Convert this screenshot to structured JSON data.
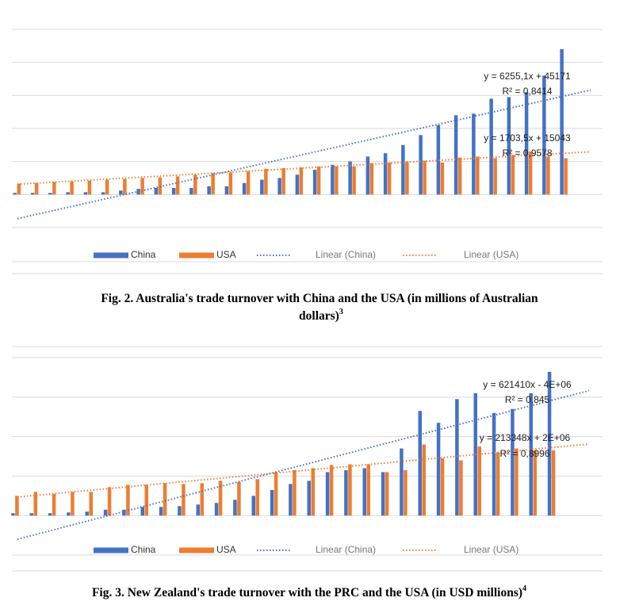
{
  "chart_data": [
    {
      "type": "bar",
      "categories": [
        null,
        null,
        null,
        null,
        null,
        null,
        null,
        null,
        null,
        null,
        null,
        null,
        null,
        null,
        null,
        null,
        null,
        null,
        null,
        null,
        null,
        null,
        null,
        null,
        null,
        null,
        null,
        null,
        null,
        null,
        null,
        null
      ],
      "ylim": [
        -1,
        5
      ],
      "series": [
        {
          "name": "China",
          "color": "#4472c4",
          "values": [
            0.05,
            0.05,
            0.05,
            0.07,
            0.07,
            0.07,
            0.12,
            0.17,
            0.2,
            0.2,
            0.2,
            0.25,
            0.25,
            0.35,
            0.45,
            0.5,
            0.6,
            0.75,
            0.9,
            1.0,
            1.15,
            1.25,
            1.5,
            1.8,
            2.1,
            2.4,
            2.45,
            2.9,
            2.95,
            3.1,
            3.6,
            4.4
          ]
        },
        {
          "name": "USA",
          "color": "#ed7d31",
          "values": [
            0.33,
            0.35,
            0.38,
            0.4,
            0.42,
            0.45,
            0.47,
            0.5,
            0.52,
            0.55,
            0.6,
            0.65,
            0.67,
            0.7,
            0.78,
            0.8,
            0.82,
            0.85,
            0.85,
            0.85,
            0.95,
            0.97,
            1.0,
            1.02,
            0.97,
            1.12,
            1.15,
            1.1,
            1.2,
            1.3,
            1.15,
            1.1
          ]
        }
      ],
      "trend_labels": [
        "Linear (China)",
        "Linear (USA)"
      ],
      "annotations": [
        "y = 6255,1x + 45171",
        "R² = 0,8414",
        "y = 1703,5x + 15043",
        "R² = 0,9578"
      ],
      "caption": "Fig. 2. Australia's trade turnover with China and the USA (in millions of Australian dollars)",
      "caption_note": "3"
    },
    {
      "type": "bar",
      "categories": [
        null,
        null,
        null,
        null,
        null,
        null,
        null,
        null,
        null,
        null,
        null,
        null,
        null,
        null,
        null,
        null,
        null,
        null,
        null,
        null,
        null,
        null,
        null,
        null,
        null,
        null,
        null,
        null,
        null,
        null
      ],
      "ylim": [
        -1,
        4
      ],
      "series": [
        {
          "name": "China",
          "color": "#4472c4",
          "values": [
            0.06,
            0.06,
            0.06,
            0.08,
            0.1,
            0.15,
            0.15,
            0.22,
            0.22,
            0.24,
            0.28,
            0.32,
            0.4,
            0.5,
            0.65,
            0.8,
            0.88,
            1.1,
            1.15,
            1.2,
            1.1,
            1.7,
            2.65,
            2.35,
            2.95,
            3.1,
            2.6,
            2.7,
            3.1,
            3.64
          ]
        },
        {
          "name": "USA",
          "color": "#ed7d31",
          "values": [
            0.5,
            0.6,
            0.55,
            0.6,
            0.6,
            0.72,
            0.78,
            0.78,
            0.82,
            0.8,
            0.82,
            0.88,
            0.85,
            0.92,
            1.1,
            1.15,
            1.2,
            1.28,
            1.3,
            1.3,
            1.1,
            1.15,
            1.8,
            1.45,
            1.4,
            1.75,
            1.6,
            1.7,
            1.65,
            1.65
          ]
        }
      ],
      "trend_labels": [
        "Linear (China)",
        "Linear (USA)"
      ],
      "annotations": [
        "y = 621410x - 4E+06",
        "R² = 0,845",
        "y = 213348x + 2E+06",
        "R² = 0,8996"
      ],
      "caption": "Fig. 3. New Zealand's trade turnover with the PRC and the USA (in USD millions)",
      "caption_note": "4"
    }
  ]
}
